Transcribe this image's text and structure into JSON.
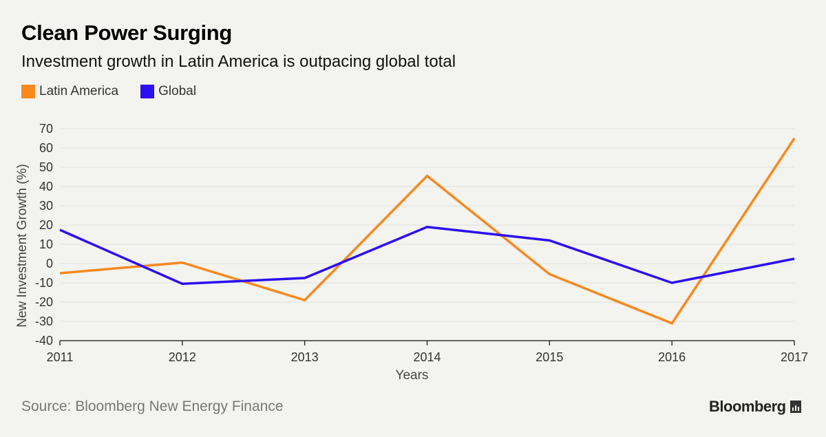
{
  "title": "Clean Power Surging",
  "subtitle": "Investment growth in Latin America is outpacing global total",
  "source": "Source: Bloomberg New Energy Finance",
  "brand": "Bloomberg",
  "colors": {
    "latam": "#f7891e",
    "global": "#2c0ff2",
    "grid": "#e2e2de",
    "axis": "#333333"
  },
  "chart_data": {
    "type": "line",
    "x": [
      "2011",
      "2012",
      "2013",
      "2014",
      "2015",
      "2016",
      "2017"
    ],
    "series": [
      {
        "name": "Latin America",
        "values": [
          -5,
          0.5,
          -19,
          45.5,
          -5.5,
          -31,
          65
        ]
      },
      {
        "name": "Global",
        "values": [
          17.5,
          -10.5,
          -7.5,
          19,
          12,
          -10,
          2.5
        ]
      }
    ],
    "xlabel": "Years",
    "ylabel": "New Investment Growth (%)",
    "ylim": [
      -40,
      70
    ],
    "yticks": [
      -40,
      -30,
      -20,
      -10,
      0,
      10,
      20,
      30,
      40,
      50,
      60,
      70
    ],
    "grid": true,
    "legend": "top-left"
  }
}
